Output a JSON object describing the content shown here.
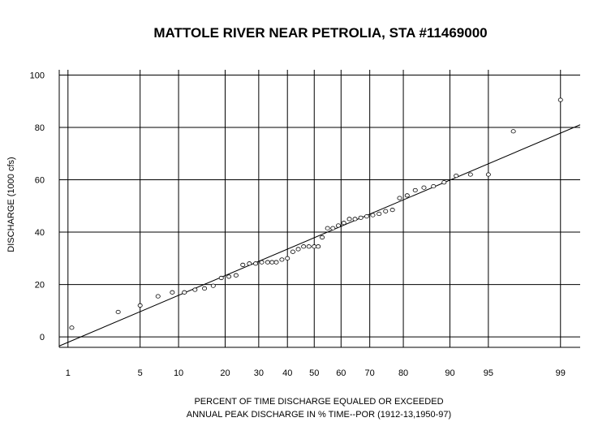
{
  "chart_data": {
    "type": "scatter",
    "title": "MATTOLE RIVER NEAR PETROLIA, STA #11469000",
    "xlabel": "PERCENT OF TIME DISCHARGE EQUALED OR EXCEEDED",
    "xlabel2": "ANNUAL PEAK DISCHARGE IN % TIME--POR (1912-13,1950-97)",
    "ylabel": "DISCHARGE (1000 cfs)",
    "x_scale": "normal-probability",
    "xlim": [
      0.8,
      99.4
    ],
    "ylim": [
      -4,
      102
    ],
    "x_ticks": [
      1,
      5,
      10,
      20,
      30,
      40,
      50,
      60,
      70,
      80,
      90,
      95,
      99
    ],
    "x_tick_labels": [
      "1",
      "5",
      "10",
      "20",
      "30",
      "40",
      "50",
      "60",
      "70",
      "80",
      "90",
      "95",
      "99"
    ],
    "y_ticks": [
      0,
      20,
      40,
      60,
      80,
      100
    ],
    "y_tick_labels": [
      "0",
      "20",
      "40",
      "60",
      "80",
      "100"
    ],
    "grid": true,
    "series": [
      {
        "points": [
          [
            1.1,
            3.5
          ],
          [
            3.2,
            9.5
          ],
          [
            5,
            12
          ],
          [
            7,
            15.5
          ],
          [
            9,
            17
          ],
          [
            11,
            17
          ],
          [
            13,
            18
          ],
          [
            15,
            18.5
          ],
          [
            17,
            19.5
          ],
          [
            19,
            22.5
          ],
          [
            21,
            23
          ],
          [
            23,
            23.5
          ],
          [
            25,
            27.5
          ],
          [
            27,
            28
          ],
          [
            29,
            28
          ],
          [
            31,
            28.5
          ],
          [
            33,
            28.5
          ],
          [
            34.5,
            28.5
          ],
          [
            36,
            28.5
          ],
          [
            38,
            29.5
          ],
          [
            40,
            30
          ],
          [
            42,
            32.5
          ],
          [
            44,
            33.5
          ],
          [
            46,
            34.5
          ],
          [
            48,
            34.5
          ],
          [
            50,
            34.5
          ],
          [
            51.5,
            34.5
          ],
          [
            53,
            38
          ],
          [
            55,
            41.5
          ],
          [
            57,
            41.5
          ],
          [
            59,
            42.5
          ],
          [
            61,
            43.5
          ],
          [
            63,
            45
          ],
          [
            65,
            45
          ],
          [
            67,
            45.5
          ],
          [
            69,
            46
          ],
          [
            71,
            46.5
          ],
          [
            73,
            47
          ],
          [
            75,
            48
          ],
          [
            77,
            48.5
          ],
          [
            79,
            53
          ],
          [
            81,
            54
          ],
          [
            83,
            56
          ],
          [
            85,
            57
          ],
          [
            87,
            57.5
          ],
          [
            89,
            59
          ],
          [
            91,
            61.5
          ],
          [
            93,
            62
          ],
          [
            95,
            62
          ],
          [
            97,
            78.5
          ],
          [
            99,
            90.5
          ]
        ]
      }
    ],
    "fit_line": {
      "x": [
        0.8,
        99.4
      ],
      "y": [
        -3.5,
        81
      ]
    }
  }
}
